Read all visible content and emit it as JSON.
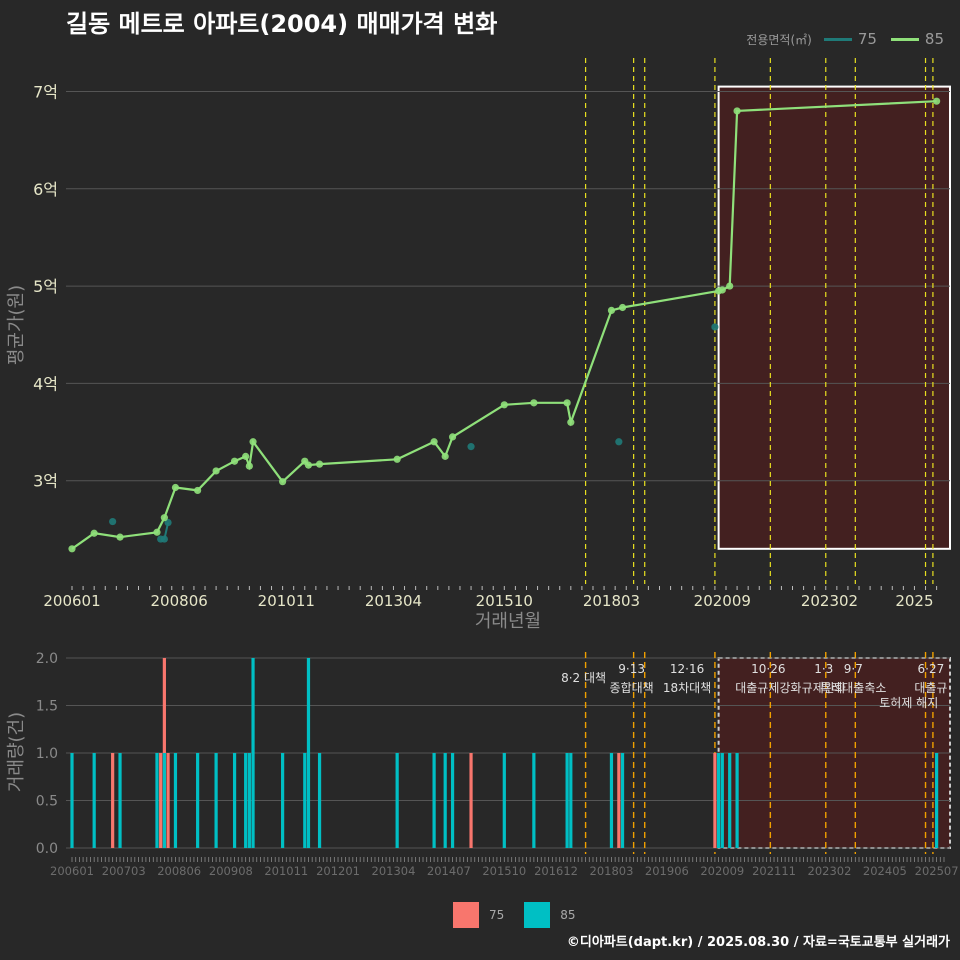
{
  "title": "길동 메트로 아파트(2004) 매매가격 변화",
  "footer": "©디아파트(dapt.kr) / 2025.08.30 / 자료=국토교통부 실거래가",
  "legend_top": {
    "title": "전용면적(㎡)",
    "items": [
      "75",
      "85"
    ]
  },
  "legend_bottom": {
    "items": [
      "75",
      "85"
    ]
  },
  "colors": {
    "bg": "#282828",
    "grid": "#555555",
    "line75": "#1f7a78",
    "line85": "#8fe07a",
    "bar75": "#f8766d",
    "bar85": "#00bfc4",
    "policy": "#e8e020",
    "policy_bottom": "#f0a000",
    "region_fill": "#5a1a1a",
    "region_stroke": "#ffffff"
  },
  "chart_data": [
    {
      "type": "line",
      "xlabel": "거래년월",
      "ylabel": "평균가(원)",
      "y_ticks": [
        {
          "v": 3,
          "label": "3억"
        },
        {
          "v": 4,
          "label": "4억"
        },
        {
          "v": 5,
          "label": "5억"
        },
        {
          "v": 6,
          "label": "6억"
        },
        {
          "v": 7,
          "label": "7억"
        }
      ],
      "x_ticks": [
        "200601",
        "200806",
        "201011",
        "201304",
        "201510",
        "201803",
        "202009",
        "202302",
        "2025"
      ],
      "ylim": [
        2.0,
        7.2
      ],
      "series": [
        {
          "name": "75",
          "points": [
            [
              "200612",
              2.58
            ],
            [
              "200801",
              2.4
            ],
            [
              "200802",
              2.4
            ],
            [
              "200803",
              2.57
            ],
            [
              "201501",
              3.35
            ],
            [
              "201805",
              3.4
            ],
            [
              "202007",
              4.58
            ]
          ]
        },
        {
          "name": "85",
          "points": [
            [
              "200601",
              2.3
            ],
            [
              "200607",
              2.46
            ],
            [
              "200702",
              2.42
            ],
            [
              "200712",
              2.47
            ],
            [
              "200802",
              2.62
            ],
            [
              "200805",
              2.93
            ],
            [
              "200811",
              2.9
            ],
            [
              "200904",
              3.1
            ],
            [
              "200909",
              3.2
            ],
            [
              "200912",
              3.25
            ],
            [
              "201001",
              3.15
            ],
            [
              "201002",
              3.4
            ],
            [
              "201010",
              2.99
            ],
            [
              "201104",
              3.2
            ],
            [
              "201105",
              3.16
            ],
            [
              "201108",
              3.17
            ],
            [
              "201305",
              3.22
            ],
            [
              "201403",
              3.4
            ],
            [
              "201406",
              3.25
            ],
            [
              "201408",
              3.45
            ],
            [
              "201510",
              3.78
            ],
            [
              "201606",
              3.8
            ],
            [
              "201703",
              3.8
            ],
            [
              "201704",
              3.6
            ],
            [
              "201803",
              4.75
            ],
            [
              "201806",
              4.78
            ],
            [
              "202008",
              4.95
            ],
            [
              "202009",
              4.96
            ],
            [
              "202011",
              5.0
            ],
            [
              "202101",
              6.8
            ],
            [
              "202507",
              6.9
            ]
          ]
        }
      ]
    },
    {
      "type": "bar",
      "xlabel": "",
      "ylabel": "거래량(건)",
      "y_ticks": [
        "0.0",
        "0.5",
        "1.0",
        "1.5",
        "2.0"
      ],
      "ylim": [
        0,
        2.0
      ],
      "x_ticks": [
        "200601",
        "200703",
        "200806",
        "200908",
        "201011",
        "201201",
        "201304",
        "201407",
        "201510",
        "201612",
        "201803",
        "201906",
        "202009",
        "202111",
        "202302",
        "202405",
        "202507"
      ],
      "series": [
        {
          "name": "75",
          "values": [
            [
              "200612",
              1
            ],
            [
              "200801",
              1
            ],
            [
              "200802",
              2
            ],
            [
              "200803",
              1
            ],
            [
              "201501",
              1
            ],
            [
              "201805",
              1
            ],
            [
              "202007",
              1
            ]
          ]
        },
        {
          "name": "85",
          "values": [
            [
              "200601",
              1
            ],
            [
              "200607",
              1
            ],
            [
              "200702",
              1
            ],
            [
              "200712",
              1
            ],
            [
              "200802",
              1
            ],
            [
              "200805",
              1
            ],
            [
              "200811",
              1
            ],
            [
              "200904",
              1
            ],
            [
              "200909",
              1
            ],
            [
              "200912",
              1
            ],
            [
              "201001",
              1
            ],
            [
              "201002",
              2
            ],
            [
              "201010",
              1
            ],
            [
              "201104",
              1
            ],
            [
              "201105",
              2
            ],
            [
              "201108",
              1
            ],
            [
              "201305",
              1
            ],
            [
              "201403",
              1
            ],
            [
              "201406",
              1
            ],
            [
              "201408",
              1
            ],
            [
              "201510",
              1
            ],
            [
              "201606",
              1
            ],
            [
              "201703",
              1
            ],
            [
              "201704",
              1
            ],
            [
              "201803",
              1
            ],
            [
              "201806",
              1
            ],
            [
              "202008",
              1
            ],
            [
              "202009",
              1
            ],
            [
              "202011",
              1
            ],
            [
              "202101",
              1
            ],
            [
              "202507",
              1
            ]
          ]
        }
      ]
    }
  ],
  "policy_lines": [
    "201708",
    "201809",
    "201812",
    "202007",
    "202110",
    "202301",
    "202309",
    "202504",
    "202506"
  ],
  "annotations": [
    {
      "date": "201708",
      "line1": "8·2 대책",
      "line2": ""
    },
    {
      "date": "201809",
      "line1": "9·13",
      "line2": "종합대책"
    },
    {
      "date": "201912",
      "line1": "12·16",
      "line2": "18차대책"
    },
    {
      "date": "202110",
      "line1": "10·26",
      "line2": "대출규제강화"
    },
    {
      "date": "202301",
      "line1": "1·3",
      "line2": "규제완화"
    },
    {
      "date": "202309",
      "line1": "9·7",
      "line2": "특례대출축소"
    },
    {
      "date": "202506",
      "line1": "6·27",
      "line2": "대출규"
    },
    {
      "date": "202412",
      "line1": "토허제 해지",
      "line2": ""
    }
  ],
  "highlight": {
    "from": "202008",
    "to": "202509"
  }
}
